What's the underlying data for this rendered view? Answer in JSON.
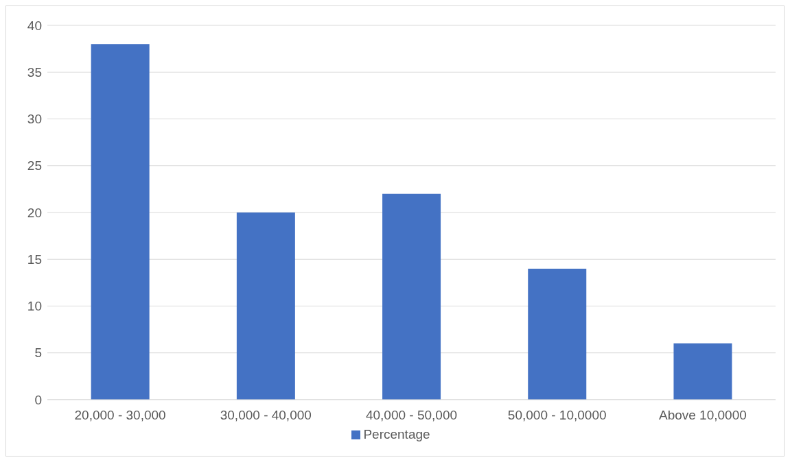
{
  "chart_data": {
    "type": "bar",
    "categories": [
      "20,000 - 30,000",
      "30,000 - 40,000",
      "40,000 - 50,000",
      "50,000 - 10,0000",
      "Above 10,0000"
    ],
    "series": [
      {
        "name": "Percentage",
        "color": "#4472c4",
        "values": [
          38,
          20,
          22,
          14,
          6
        ]
      }
    ],
    "ylim": [
      0,
      40
    ],
    "yticks": [
      0,
      5,
      10,
      15,
      20,
      25,
      30,
      35,
      40
    ],
    "grid": "y",
    "legend": "bottom"
  }
}
